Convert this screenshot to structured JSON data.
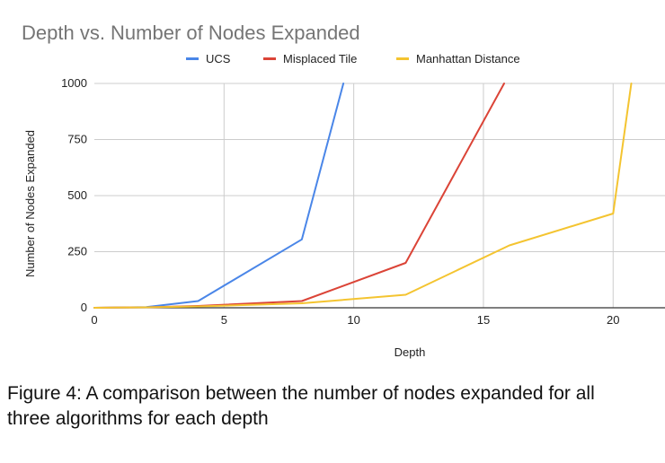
{
  "caption": {
    "line1": "Figure 4: A comparison between the number of nodes expanded for all",
    "line2": "three algorithms for each depth"
  },
  "chart_data": {
    "type": "line",
    "title": "Depth vs. Number of Nodes Expanded",
    "xlabel": "Depth",
    "ylabel": "Number of Nodes Expanded",
    "xlim": [
      0,
      22
    ],
    "ylim": [
      0,
      1000
    ],
    "xticks": [
      "0",
      "5",
      "10",
      "15",
      "20"
    ],
    "yticks": [
      "0",
      "250",
      "500",
      "750",
      "1000"
    ],
    "grid": true,
    "legend_position": "top",
    "series": [
      {
        "name": "UCS",
        "color": "#4a86e8",
        "points": [
          [
            0,
            0
          ],
          [
            2,
            3
          ],
          [
            4,
            30
          ],
          [
            8,
            305
          ],
          [
            9.6,
            1000
          ]
        ]
      },
      {
        "name": "Misplaced Tile",
        "color": "#db4437",
        "points": [
          [
            0,
            0
          ],
          [
            2,
            2
          ],
          [
            4,
            8
          ],
          [
            8,
            30
          ],
          [
            12,
            200
          ],
          [
            15.8,
            1000
          ]
        ]
      },
      {
        "name": "Manhattan Distance",
        "color": "#f4c430",
        "points": [
          [
            0,
            0
          ],
          [
            2,
            2
          ],
          [
            4,
            6
          ],
          [
            8,
            20
          ],
          [
            12,
            58
          ],
          [
            16,
            278
          ],
          [
            20,
            420
          ],
          [
            20.7,
            1000
          ]
        ]
      }
    ]
  }
}
